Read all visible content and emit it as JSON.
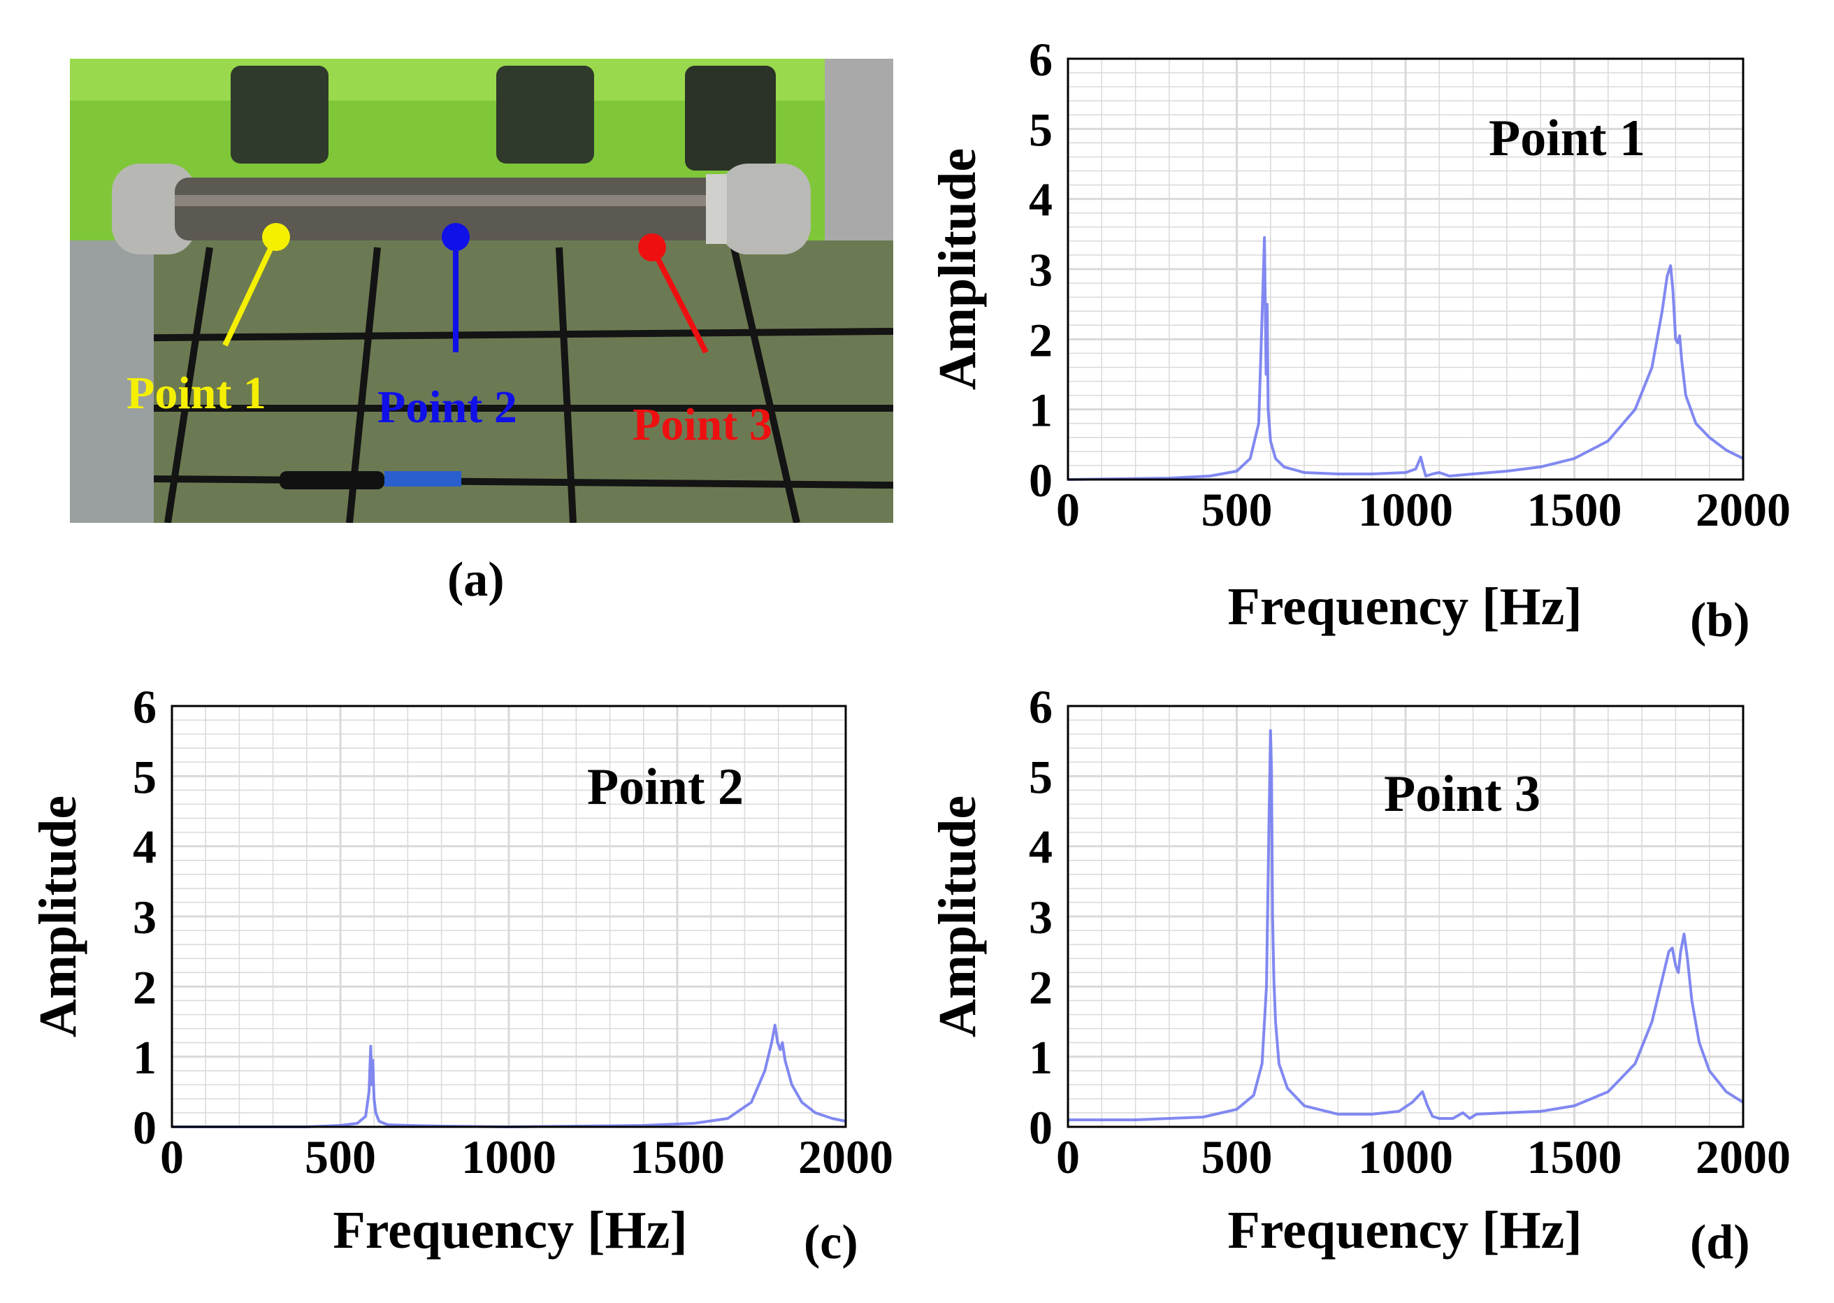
{
  "panels": {
    "a": {
      "label": "(a)",
      "points": [
        {
          "label": "Point 1",
          "color": "#f5f000"
        },
        {
          "label": "Point 2",
          "color": "#1010e8"
        },
        {
          "label": "Point 3",
          "color": "#ee1010"
        }
      ]
    },
    "b": {
      "label": "(b)"
    },
    "c": {
      "label": "(c)"
    },
    "d": {
      "label": "(d)"
    }
  },
  "colors": {
    "line": "#6b74ef",
    "grid": "#d9d9d9",
    "machine_green": "#8fd43a"
  },
  "chart_data": [
    {
      "id": "b",
      "type": "line",
      "title": "Point 1",
      "xlabel": "Frequency [Hz]",
      "ylabel": "Amplitude",
      "xlim": [
        0,
        2000
      ],
      "ylim": [
        0,
        6
      ],
      "xticks": [
        0,
        500,
        1000,
        1500,
        2000
      ],
      "yticks": [
        0,
        1,
        2,
        3,
        4,
        5,
        6
      ],
      "grid": true,
      "series": [
        {
          "name": "Point 1",
          "x": [
            0,
            300,
            420,
            500,
            540,
            565,
            578,
            582,
            585,
            587,
            590,
            593,
            596,
            600,
            615,
            640,
            700,
            800,
            900,
            1000,
            1030,
            1045,
            1052,
            1060,
            1080,
            1100,
            1130,
            1200,
            1300,
            1400,
            1500,
            1600,
            1680,
            1730,
            1760,
            1775,
            1785,
            1792,
            1800,
            1806,
            1812,
            1818,
            1830,
            1860,
            1900,
            1950,
            2000
          ],
          "y": [
            0.0,
            0.02,
            0.05,
            0.12,
            0.3,
            0.8,
            2.8,
            3.45,
            2.2,
            1.5,
            2.5,
            1.0,
            0.8,
            0.55,
            0.3,
            0.18,
            0.1,
            0.08,
            0.08,
            0.1,
            0.15,
            0.32,
            0.18,
            0.05,
            0.08,
            0.1,
            0.05,
            0.08,
            0.12,
            0.18,
            0.3,
            0.55,
            1.0,
            1.6,
            2.4,
            2.9,
            3.05,
            2.7,
            2.0,
            1.95,
            2.05,
            1.7,
            1.2,
            0.8,
            0.6,
            0.42,
            0.3
          ]
        }
      ]
    },
    {
      "id": "c",
      "type": "line",
      "title": "Point 2",
      "xlabel": "Frequency [Hz]",
      "ylabel": "Amplitude",
      "xlim": [
        0,
        2000
      ],
      "ylim": [
        0,
        6
      ],
      "xticks": [
        0,
        500,
        1000,
        1500,
        2000
      ],
      "yticks": [
        0,
        1,
        2,
        3,
        4,
        5,
        6
      ],
      "grid": true,
      "series": [
        {
          "name": "Point 2",
          "x": [
            0,
            400,
            500,
            550,
            575,
            585,
            590,
            593,
            596,
            600,
            605,
            615,
            640,
            700,
            800,
            1000,
            1200,
            1400,
            1550,
            1650,
            1720,
            1760,
            1780,
            1790,
            1798,
            1806,
            1812,
            1820,
            1840,
            1870,
            1910,
            1960,
            2000
          ],
          "y": [
            0.0,
            0.0,
            0.02,
            0.05,
            0.15,
            0.5,
            1.15,
            0.6,
            0.95,
            0.4,
            0.2,
            0.08,
            0.03,
            0.02,
            0.01,
            0.0,
            0.01,
            0.02,
            0.05,
            0.12,
            0.35,
            0.8,
            1.2,
            1.45,
            1.2,
            1.1,
            1.2,
            0.95,
            0.6,
            0.35,
            0.2,
            0.12,
            0.08
          ]
        }
      ]
    },
    {
      "id": "d",
      "type": "line",
      "title": "Point 3",
      "xlabel": "Frequency [Hz]",
      "ylabel": "Amplitude",
      "xlim": [
        0,
        2000
      ],
      "ylim": [
        0,
        6
      ],
      "xticks": [
        0,
        500,
        1000,
        1500,
        2000
      ],
      "yticks": [
        0,
        1,
        2,
        3,
        4,
        5,
        6
      ],
      "grid": true,
      "series": [
        {
          "name": "Point 3",
          "x": [
            0,
            200,
            400,
            500,
            550,
            575,
            588,
            595,
            600,
            603,
            606,
            610,
            615,
            625,
            650,
            700,
            800,
            900,
            980,
            1020,
            1040,
            1050,
            1065,
            1080,
            1100,
            1140,
            1170,
            1190,
            1210,
            1300,
            1400,
            1500,
            1600,
            1680,
            1730,
            1760,
            1780,
            1790,
            1800,
            1808,
            1815,
            1825,
            1835,
            1848,
            1870,
            1900,
            1950,
            2000
          ],
          "y": [
            0.1,
            0.1,
            0.14,
            0.25,
            0.45,
            0.9,
            2.0,
            4.2,
            5.65,
            5.1,
            3.0,
            2.1,
            1.5,
            0.9,
            0.55,
            0.3,
            0.18,
            0.18,
            0.22,
            0.35,
            0.45,
            0.5,
            0.3,
            0.15,
            0.12,
            0.12,
            0.2,
            0.12,
            0.18,
            0.2,
            0.22,
            0.3,
            0.5,
            0.9,
            1.5,
            2.1,
            2.5,
            2.55,
            2.3,
            2.2,
            2.5,
            2.75,
            2.4,
            1.8,
            1.2,
            0.8,
            0.5,
            0.35
          ]
        }
      ]
    }
  ]
}
